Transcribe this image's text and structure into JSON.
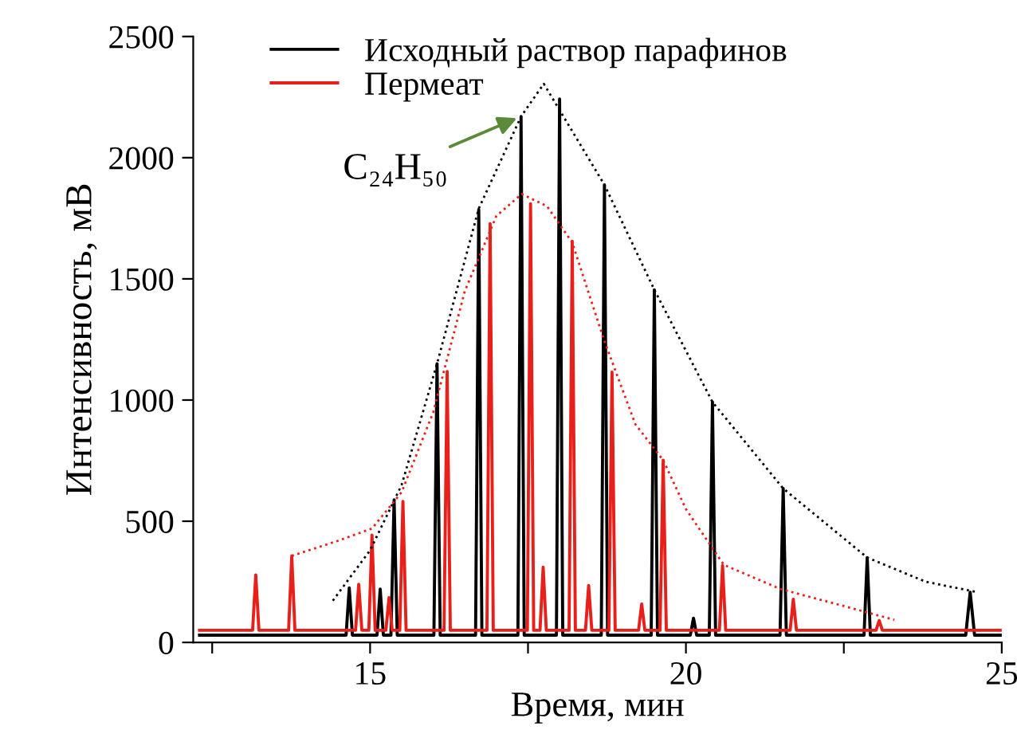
{
  "chart_data": {
    "type": "line",
    "xlabel": "Время, мин",
    "ylabel": "Интенсивность, мВ",
    "xlim": [
      12.2,
      25
    ],
    "xticks": [
      {
        "value": 12.5,
        "label": null
      },
      15,
      {
        "value": 17.5,
        "label": null
      },
      20,
      {
        "value": 22.5,
        "label": null
      },
      25
    ],
    "ylim": [
      0,
      2500
    ],
    "yticks": [
      0,
      500,
      1000,
      1500,
      2000,
      2500
    ],
    "grid": false,
    "legend": "top left",
    "marker": "none",
    "annotations": [
      {
        "text": "C₂₄H₅₀",
        "x": 17.39,
        "y": 2170
      }
    ],
    "series": [
      {
        "name": "Исходный раствор парафинов",
        "color": "#000000",
        "line_style": "solid",
        "x": [
          12.3,
          14.62,
          14.67,
          14.72,
          15.11,
          15.16,
          15.21,
          15.33,
          15.38,
          15.43,
          16.01,
          16.06,
          16.11,
          16.67,
          16.72,
          16.77,
          17.34,
          17.39,
          17.44,
          17.95,
          18.0,
          18.05,
          18.66,
          18.71,
          18.76,
          19.45,
          19.5,
          19.55,
          20.07,
          20.12,
          20.17,
          20.37,
          20.42,
          20.47,
          21.49,
          21.54,
          21.59,
          22.82,
          22.87,
          22.92,
          24.43,
          24.5,
          24.57,
          25.0
        ],
        "values": [
          30,
          30,
          225,
          30,
          30,
          220,
          30,
          30,
          588,
          30,
          30,
          1150,
          30,
          30,
          1786,
          30,
          30,
          2170,
          30,
          30,
          2242,
          30,
          30,
          1888,
          30,
          30,
          1455,
          30,
          30,
          100,
          30,
          30,
          992,
          30,
          30,
          635,
          30,
          30,
          350,
          30,
          30,
          207,
          30,
          30
        ]
      },
      {
        "name": "Пермеат",
        "color": "#e8201c",
        "line_style": "solid",
        "x": [
          12.3,
          13.14,
          13.19,
          13.24,
          13.71,
          13.76,
          13.81,
          14.77,
          14.82,
          14.87,
          14.98,
          15.03,
          15.08,
          15.25,
          15.3,
          15.35,
          15.47,
          15.52,
          15.57,
          16.17,
          16.22,
          16.27,
          16.85,
          16.9,
          16.95,
          17.49,
          17.54,
          17.59,
          17.69,
          17.74,
          17.79,
          18.15,
          18.2,
          18.25,
          18.41,
          18.46,
          18.51,
          18.78,
          18.83,
          18.88,
          19.25,
          19.3,
          19.35,
          19.59,
          19.64,
          19.69,
          20.53,
          20.58,
          20.63,
          21.65,
          21.7,
          21.75,
          23.01,
          23.06,
          23.11,
          25.0
        ],
        "values": [
          50,
          50,
          278,
          50,
          50,
          357,
          50,
          50,
          240,
          50,
          50,
          443,
          50,
          50,
          185,
          50,
          50,
          582,
          50,
          50,
          1118,
          50,
          50,
          1728,
          50,
          50,
          1810,
          50,
          50,
          310,
          50,
          50,
          1655,
          50,
          50,
          235,
          50,
          50,
          1115,
          50,
          50,
          158,
          50,
          50,
          752,
          50,
          50,
          317,
          50,
          50,
          178,
          50,
          50,
          90,
          50,
          50
        ]
      },
      {
        "type": "line",
        "color": "#000000",
        "line_style": "dotted",
        "x": [
          14.41,
          15.0,
          15.5,
          16.06,
          16.72,
          17.39,
          17.75,
          18.71,
          19.5,
          20.42,
          21.54,
          22.87,
          23.8,
          24.62
        ],
        "values": [
          172,
          380,
          650,
          1150,
          1790,
          2170,
          2305,
          1888,
          1455,
          992,
          635,
          350,
          250,
          207
        ]
      },
      {
        "type": "line",
        "color": "#e8201c",
        "line_style": "dotted",
        "x": [
          13.76,
          14.5,
          15.03,
          15.5,
          16.0,
          16.5,
          17.0,
          17.4,
          17.8,
          18.2,
          18.7,
          19.2,
          19.64,
          20.0,
          20.6,
          21.5,
          22.5,
          23.3
        ],
        "values": [
          357,
          420,
          470,
          620,
          950,
          1450,
          1760,
          1850,
          1800,
          1650,
          1250,
          900,
          752,
          550,
          320,
          220,
          150,
          93
        ]
      }
    ]
  }
}
